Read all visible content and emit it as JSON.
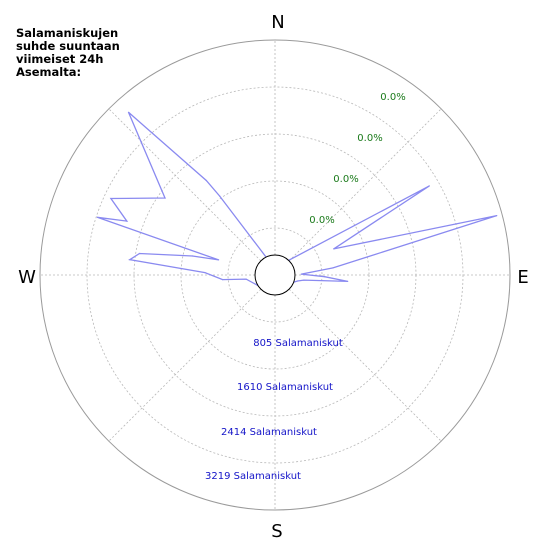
{
  "title_lines": [
    "Salamaniskujen",
    "suhde suuntaan",
    "viimeiset 24h",
    "Asemalta:"
  ],
  "colors": {
    "series_line": "#8a8af0",
    "grid": "#b8b8b8",
    "percent_labels": "#1a7a1a",
    "count_labels": "#1414c8"
  },
  "chart_data": {
    "type": "polar-line",
    "title": "Salamaniskujen suhde suuntaan viimeiset 24h Asemalta:",
    "compass_labels": [
      "N",
      "E",
      "S",
      "W"
    ],
    "percent_ring_labels": [
      "0.0%",
      "0.0%",
      "0.0%",
      "0.0%"
    ],
    "count_ring_labels": [
      "805 Salamaniskut",
      "1610 Salamaniskut",
      "2414 Salamaniskut",
      "3219 Salamaniskut"
    ],
    "rings": [
      805,
      1610,
      2414,
      3219,
      4024
    ],
    "r_max": 4024,
    "grid": true,
    "series": [
      {
        "points": [
          {
            "bearing": 288,
            "value": 3200
          },
          {
            "bearing": 290,
            "value": 2700
          },
          {
            "bearing": 295,
            "value": 3100
          },
          {
            "bearing": 305,
            "value": 2300
          },
          {
            "bearing": 318,
            "value": 3750
          },
          {
            "bearing": 324,
            "value": 2000
          },
          {
            "bearing": 325,
            "value": 1650
          },
          {
            "bearing": 335,
            "value": 300
          },
          {
            "bearing": 340,
            "value": 300
          },
          {
            "bearing": 40,
            "value": 300
          },
          {
            "bearing": 60,
            "value": 3050
          },
          {
            "bearing": 66,
            "value": 1100
          },
          {
            "bearing": 75,
            "value": 3930
          },
          {
            "bearing": 83,
            "value": 1000
          },
          {
            "bearing": 88,
            "value": 450
          },
          {
            "bearing": 92,
            "value": 850
          },
          {
            "bearing": 95,
            "value": 1250
          },
          {
            "bearing": 100,
            "value": 500
          },
          {
            "bearing": 105,
            "value": 400
          },
          {
            "bearing": 110,
            "value": 350
          },
          {
            "bearing": 200,
            "value": 300
          },
          {
            "bearing": 240,
            "value": 350
          },
          {
            "bearing": 262,
            "value": 500
          },
          {
            "bearing": 265,
            "value": 900
          },
          {
            "bearing": 272,
            "value": 1200
          },
          {
            "bearing": 276,
            "value": 2500
          },
          {
            "bearing": 279,
            "value": 2350
          },
          {
            "bearing": 283,
            "value": 1450
          },
          {
            "bearing": 285,
            "value": 1000
          }
        ]
      }
    ]
  }
}
